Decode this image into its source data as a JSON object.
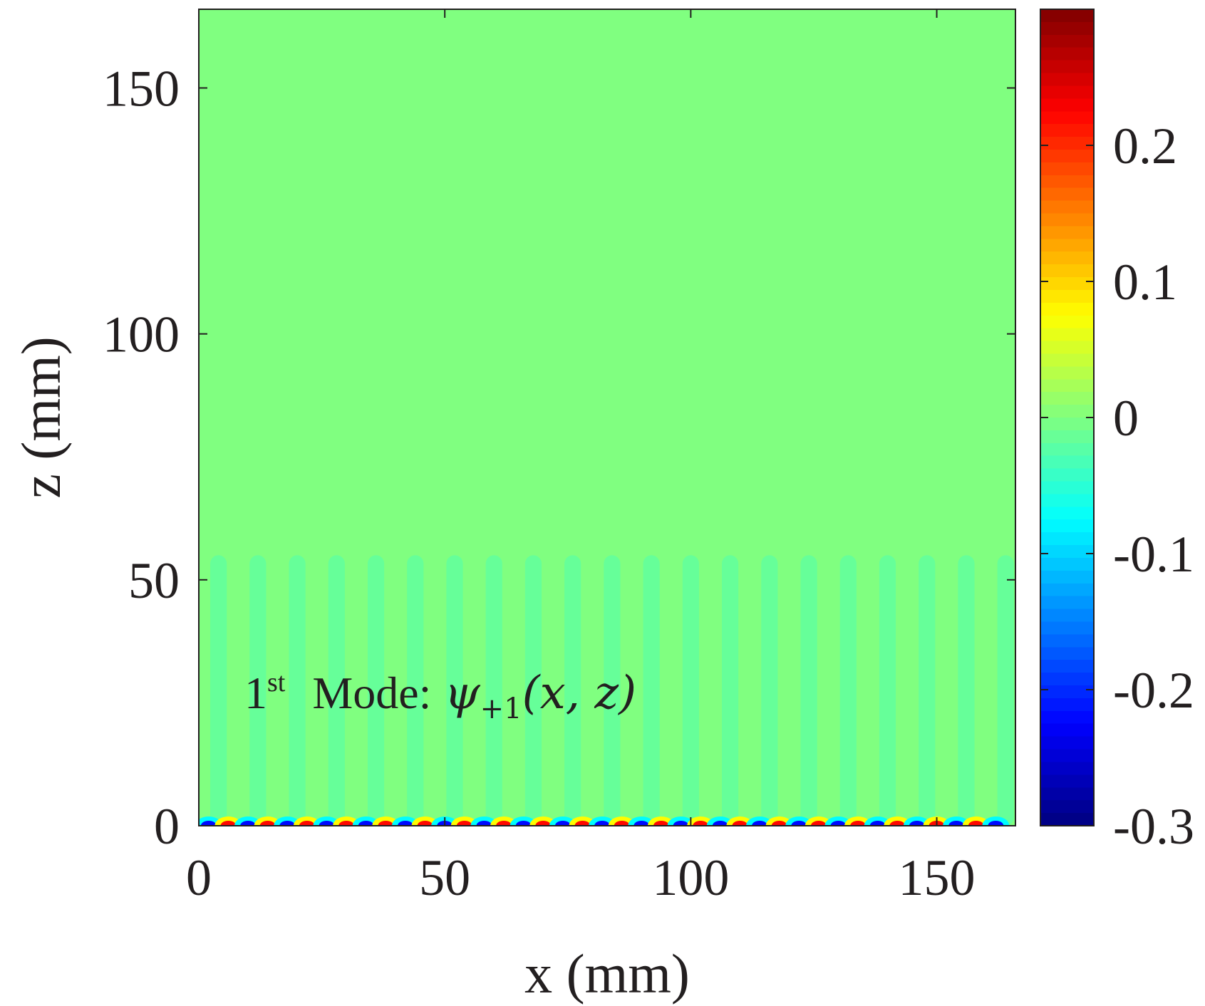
{
  "chart_data": {
    "type": "heatmap",
    "title": "",
    "xlabel": "x (mm)",
    "ylabel": "z (mm)",
    "xlim": [
      0,
      166
    ],
    "ylim": [
      0,
      166
    ],
    "xticks": [
      0,
      50,
      100,
      150
    ],
    "yticks": [
      0,
      50,
      100,
      150
    ],
    "colorbar": {
      "colormap": "jet",
      "clim": [
        -0.3,
        0.3
      ],
      "ticks": [
        -0.3,
        -0.2,
        -0.1,
        0,
        0.1,
        0.2
      ],
      "tick_labels": [
        "-0.3",
        "-0.2",
        "-0.1",
        "0",
        "0.1",
        "0.2"
      ]
    },
    "field": {
      "background_value": 0.0,
      "column_period_mm": 8,
      "column_top_mm": 55,
      "column_amplitude": -0.015,
      "surface_amplitude": 0.22,
      "surface_decay_mm": 1.2
    },
    "annotation": {
      "prefix": "1",
      "superscript": "st",
      "label": "Mode:",
      "symbol": "ψ",
      "subscript": "+1",
      "args": "(x, z)",
      "x": 10,
      "z": 28
    }
  }
}
